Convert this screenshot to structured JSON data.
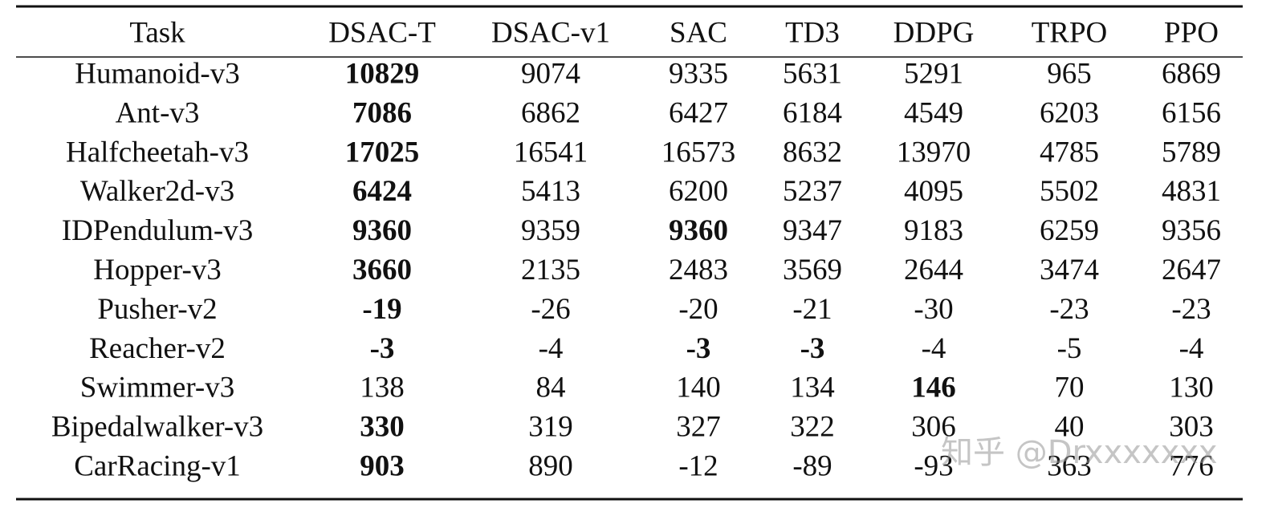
{
  "table": {
    "header": [
      "Task",
      "DSAC-T",
      "DSAC-v1",
      "SAC",
      "TD3",
      "DDPG",
      "TRPO",
      "PPO"
    ],
    "rows": [
      {
        "task": "Humanoid-v3",
        "values": [
          10829,
          9074,
          9335,
          5631,
          5291,
          965,
          6869
        ],
        "best": [
          0
        ]
      },
      {
        "task": "Ant-v3",
        "values": [
          7086,
          6862,
          6427,
          6184,
          4549,
          6203,
          6156
        ],
        "best": [
          0
        ]
      },
      {
        "task": "Halfcheetah-v3",
        "values": [
          17025,
          16541,
          16573,
          8632,
          13970,
          4785,
          5789
        ],
        "best": [
          0
        ]
      },
      {
        "task": "Walker2d-v3",
        "values": [
          6424,
          5413,
          6200,
          5237,
          4095,
          5502,
          4831
        ],
        "best": [
          0
        ]
      },
      {
        "task": "IDPendulum-v3",
        "values": [
          9360,
          9359,
          9360,
          9347,
          9183,
          6259,
          9356
        ],
        "best": [
          0,
          2
        ]
      },
      {
        "task": "Hopper-v3",
        "values": [
          3660,
          2135,
          2483,
          3569,
          2644,
          3474,
          2647
        ],
        "best": [
          0
        ]
      },
      {
        "task": "Pusher-v2",
        "values": [
          -19,
          -26,
          -20,
          -21,
          -30,
          -23,
          -23
        ],
        "best": [
          0
        ]
      },
      {
        "task": "Reacher-v2",
        "values": [
          -3,
          -4,
          -3,
          -3,
          -4,
          -5,
          -4
        ],
        "best": [
          0,
          2,
          3
        ]
      },
      {
        "task": "Swimmer-v3",
        "values": [
          138,
          84,
          140,
          134,
          146,
          70,
          130
        ],
        "best": [
          4
        ]
      },
      {
        "task": "Bipedalwalker-v3",
        "values": [
          330,
          319,
          327,
          322,
          306,
          40,
          303
        ],
        "best": [
          0
        ]
      },
      {
        "task": "CarRacing-v1",
        "values": [
          903,
          890,
          -12,
          -89,
          -93,
          363,
          776
        ],
        "best": [
          0
        ]
      }
    ]
  },
  "watermark": "知乎 @Drxxxxxxx"
}
